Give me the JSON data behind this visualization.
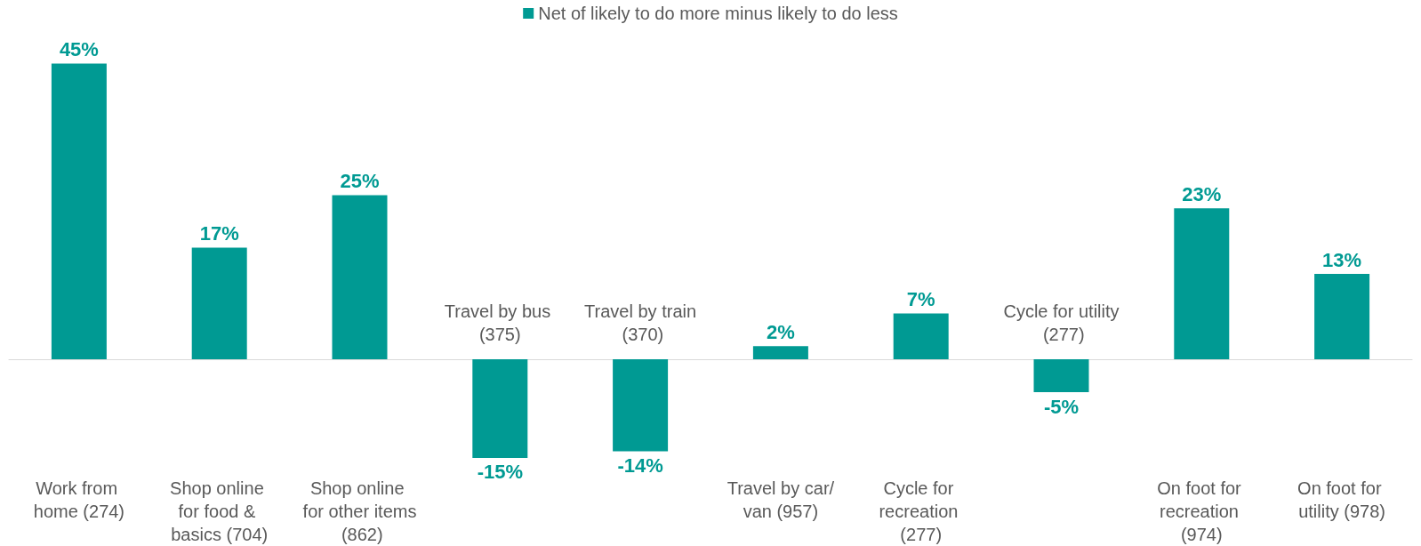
{
  "chart_data": {
    "type": "bar",
    "categories": [
      "Work from home (274)",
      "Shop online for food & basics (704)",
      "Shop online for other items (862)",
      "Travel by bus (375)",
      "Travel by train (370)",
      "Travel by car/van (957)",
      "Cycle for recreation (277)",
      "Cycle for utility (277)",
      "On foot for recreation (974)",
      "On foot for utility (978)"
    ],
    "series": [
      {
        "name": "Net of likely to do more minus likely to do less",
        "color": "#009a93",
        "values": [
          45,
          17,
          25,
          -15,
          -14,
          2,
          7,
          -5,
          23,
          13
        ],
        "value_labels": [
          "45%",
          "17%",
          "25%",
          "-15%",
          "-14%",
          "2%",
          "7%",
          "-5%",
          "23%",
          "13%"
        ]
      }
    ],
    "legend": "top",
    "grid": false
  }
}
